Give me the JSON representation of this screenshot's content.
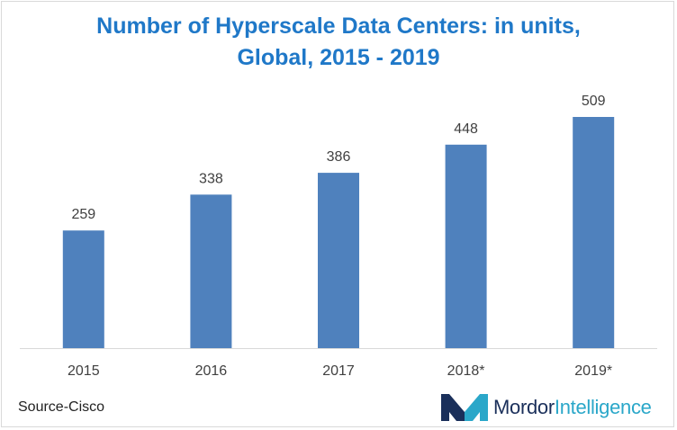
{
  "chart_data": {
    "type": "bar",
    "title": "Number of Hyperscale Data Centers: in units,",
    "subtitle": "Global, 2015 - 2019",
    "categories": [
      "2015",
      "2016",
      "2017",
      "2018*",
      "2019*"
    ],
    "values": [
      259,
      338,
      386,
      448,
      509
    ],
    "xlabel": "",
    "ylabel": "",
    "ylim": [
      0,
      560
    ],
    "bar_color": "#4f81bd",
    "grid": false,
    "data_labels": true
  },
  "source": "Source-Cisco",
  "logo": {
    "name_bold": "Mordor",
    "name_light": "Intelligence",
    "icon": "mordor-intelligence-logo-icon",
    "colors": [
      "#1a2f5a",
      "#2aa7c9"
    ]
  }
}
